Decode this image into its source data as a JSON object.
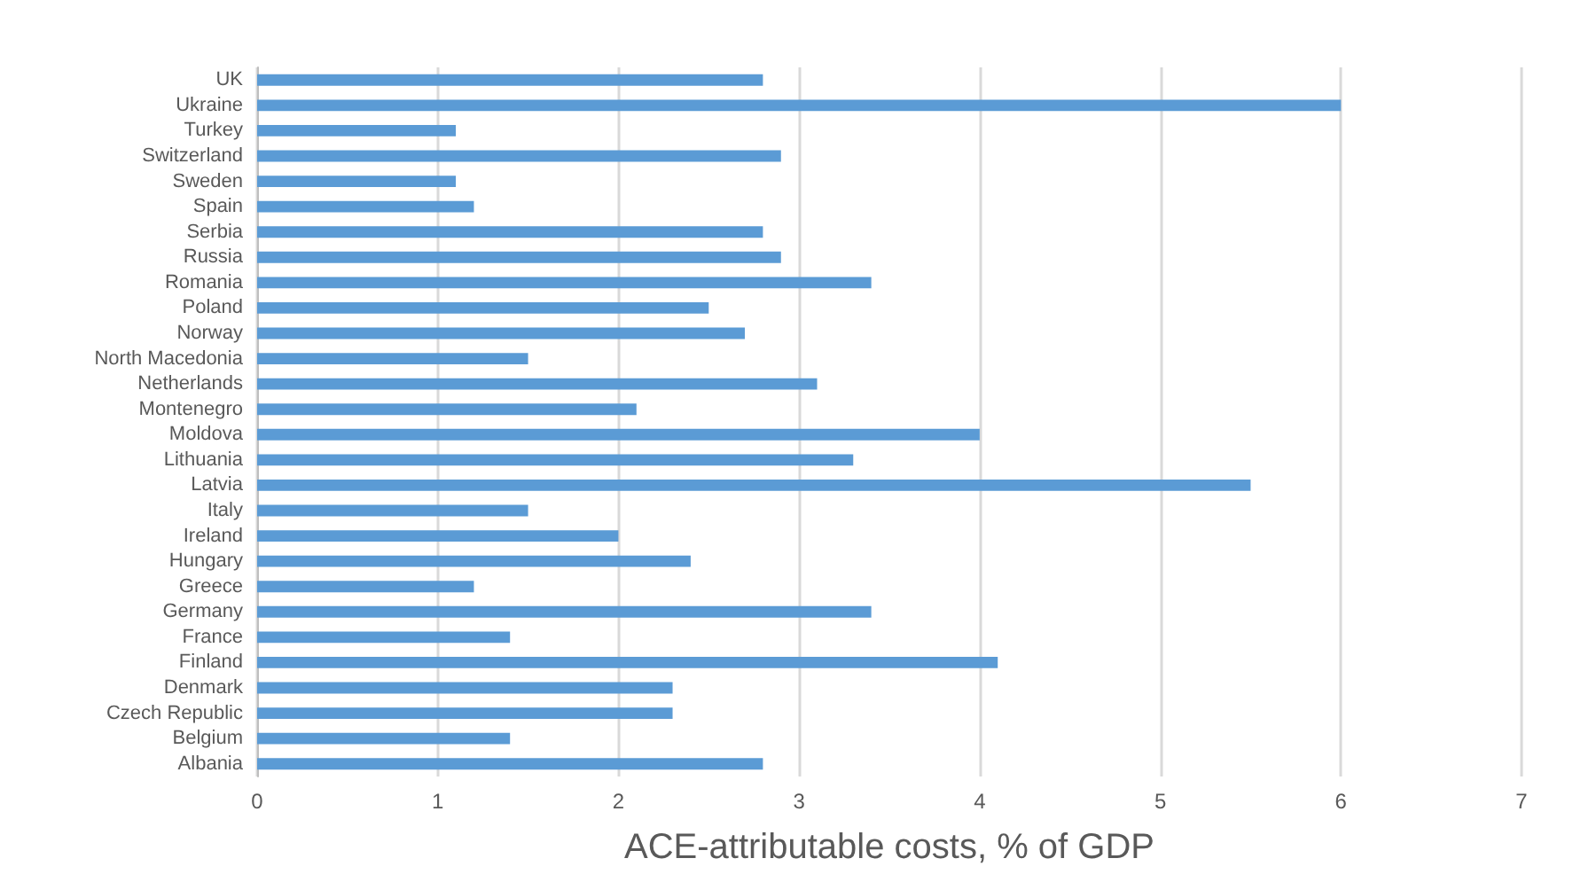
{
  "chart_data": {
    "type": "bar",
    "orientation": "horizontal",
    "xlabel": "ACE-attributable costs, % of GDP",
    "categories": [
      "UK",
      "Ukraine",
      "Turkey",
      "Switzerland",
      "Sweden",
      "Spain",
      "Serbia",
      "Russia",
      "Romania",
      "Poland",
      "Norway",
      "North Macedonia",
      "Netherlands",
      "Montenegro",
      "Moldova",
      "Lithuania",
      "Latvia",
      "Italy",
      "Ireland",
      "Hungary",
      "Greece",
      "Germany",
      "France",
      "Finland",
      "Denmark",
      "Czech Republic",
      "Belgium",
      "Albania"
    ],
    "values": [
      2.8,
      6.0,
      1.1,
      2.9,
      1.1,
      1.2,
      2.8,
      2.9,
      3.4,
      2.5,
      2.7,
      1.5,
      3.1,
      2.1,
      4.0,
      3.3,
      5.5,
      1.5,
      2.0,
      2.4,
      1.2,
      3.4,
      1.4,
      4.1,
      2.3,
      2.3,
      1.4,
      2.8
    ],
    "color": "#5b9bd5",
    "xlim": [
      0,
      7
    ],
    "xticks": [
      0,
      1,
      2,
      3,
      4,
      5,
      6,
      7
    ],
    "grid": "x"
  }
}
